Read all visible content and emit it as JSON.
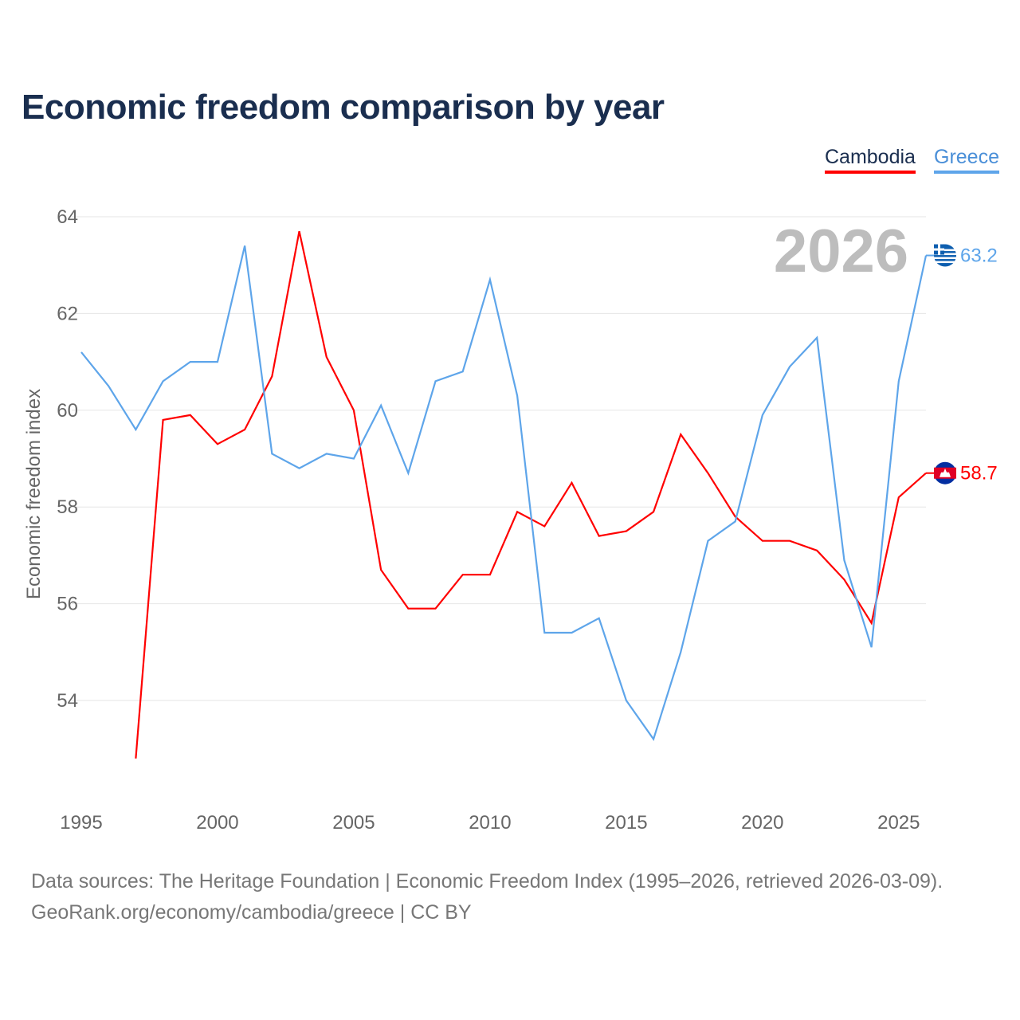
{
  "title": "Economic freedom comparison by year",
  "legend": [
    "Cambodia",
    "Greece"
  ],
  "year_label": "2026",
  "footer": {
    "line1": "Data sources: The Heritage Foundation | Economic Freedom Index (1995–2026, retrieved 2026-03-09).",
    "line2": "GeoRank.org/economy/cambodia/greece | CC BY"
  },
  "chart_data": {
    "type": "line",
    "title": "Economic freedom comparison by year",
    "xlabel": "",
    "ylabel": "Economic freedom index",
    "xlim": [
      1995,
      2026
    ],
    "ylim": [
      52,
      64
    ],
    "xticks": [
      1995,
      2000,
      2005,
      2010,
      2015,
      2020,
      2025
    ],
    "yticks": [
      54,
      56,
      58,
      60,
      62,
      64
    ],
    "grid": true,
    "legend_position": "top-right",
    "series": [
      {
        "name": "Cambodia",
        "color": "#ff0000",
        "end_label": "58.7",
        "flag": "cambodia-flag",
        "x": [
          1997,
          1998,
          1999,
          2000,
          2001,
          2002,
          2003,
          2004,
          2005,
          2006,
          2007,
          2008,
          2009,
          2010,
          2011,
          2012,
          2013,
          2014,
          2015,
          2016,
          2017,
          2018,
          2019,
          2020,
          2021,
          2022,
          2023,
          2024,
          2025,
          2026
        ],
        "values": [
          52.8,
          59.8,
          59.9,
          59.3,
          59.6,
          60.7,
          63.7,
          61.1,
          60.0,
          56.7,
          55.9,
          55.9,
          56.6,
          56.6,
          57.9,
          57.6,
          58.5,
          57.4,
          57.5,
          57.9,
          59.5,
          58.7,
          57.8,
          57.3,
          57.3,
          57.1,
          56.5,
          55.6,
          58.2,
          58.7
        ]
      },
      {
        "name": "Greece",
        "color": "#5ea5ea",
        "end_label": "63.2",
        "flag": "greece-flag",
        "x": [
          1995,
          1996,
          1997,
          1998,
          1999,
          2000,
          2001,
          2002,
          2003,
          2004,
          2005,
          2006,
          2007,
          2008,
          2009,
          2010,
          2011,
          2012,
          2013,
          2014,
          2015,
          2016,
          2017,
          2018,
          2019,
          2020,
          2021,
          2022,
          2023,
          2024,
          2025,
          2026
        ],
        "values": [
          61.2,
          60.5,
          59.6,
          60.6,
          61.0,
          61.0,
          63.4,
          59.1,
          58.8,
          59.1,
          59.0,
          60.1,
          58.7,
          60.6,
          60.8,
          62.7,
          60.3,
          55.4,
          55.4,
          55.7,
          54.0,
          53.2,
          55.0,
          57.3,
          57.7,
          59.9,
          60.9,
          61.5,
          56.9,
          55.1,
          60.6,
          63.2
        ]
      }
    ]
  }
}
